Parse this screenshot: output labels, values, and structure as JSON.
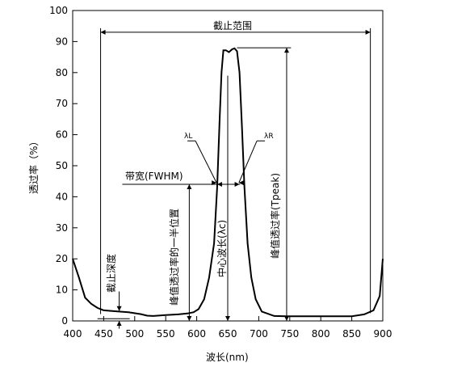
{
  "chart_data": {
    "type": "line",
    "xlabel": "波长(nm)",
    "ylabel": "透过率（%）",
    "xlim": [
      400,
      900
    ],
    "ylim": [
      0,
      100
    ],
    "xticks": [
      400,
      450,
      500,
      550,
      600,
      650,
      700,
      750,
      800,
      850,
      900
    ],
    "yticks": [
      0,
      10,
      20,
      30,
      40,
      50,
      60,
      70,
      80,
      90,
      100
    ],
    "grid": false,
    "series": [
      {
        "x": [
          400,
          410,
          420,
          430,
          440,
          450,
          470,
          490,
          510,
          520,
          530,
          550,
          570,
          585,
          595,
          603,
          612,
          620,
          628,
          633,
          637,
          640,
          643,
          647,
          652,
          657,
          661,
          665,
          669,
          673,
          677,
          682,
          688,
          695,
          705,
          725,
          745,
          765,
          790,
          810,
          830,
          850,
          870,
          885,
          895,
          900
        ],
        "values": [
          20,
          14,
          7.5,
          5.5,
          4.2,
          3.4,
          3.1,
          2.8,
          2.2,
          1.7,
          1.6,
          1.9,
          2.1,
          2.4,
          2.8,
          3.8,
          7,
          14,
          25,
          43,
          65,
          80,
          87.2,
          87.2,
          86.6,
          87.5,
          87.8,
          86.9,
          80,
          62,
          43,
          25,
          14,
          7,
          3,
          1.6,
          1.5,
          1.5,
          1.5,
          1.5,
          1.5,
          1.5,
          2.1,
          3.4,
          8,
          20
        ]
      }
    ],
    "annotations": {
      "cutoff_range": "截止范围",
      "lambda_l": "λL",
      "lambda_r": "λR",
      "bandwidth": "带宽(FWHM)",
      "half_peak_position": "峰值透过率的一半位置",
      "center_wavelength": "中心波长(λc)",
      "peak_transmittance": "峰值透过率(Tpeak)",
      "cutoff_depth": "截止深度"
    }
  }
}
